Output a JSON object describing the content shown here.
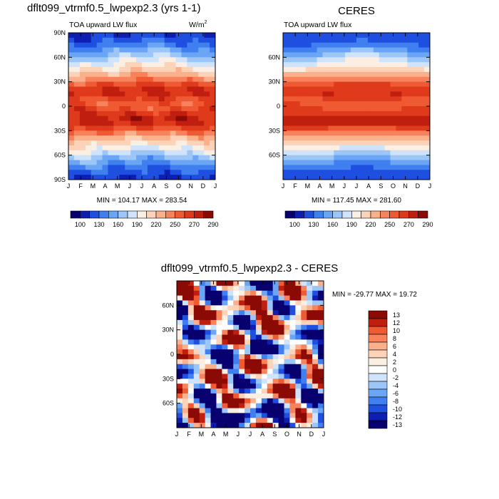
{
  "chart_data": [
    {
      "id": "model",
      "type": "heatmap",
      "title": "dflt099_vtrmf0.5_lwpexp2.3 (yrs 1-1)",
      "subtitle_left": "TOA upward LW flux",
      "units_base": "W/m",
      "units_exp": "2",
      "x_ticks": [
        "J",
        "F",
        "M",
        "A",
        "M",
        "J",
        "J",
        "A",
        "S",
        "O",
        "N",
        "D",
        "J"
      ],
      "y_ticks": [
        "90N",
        "60N",
        "30N",
        "0",
        "30S",
        "60S",
        "90S"
      ],
      "ylim": [
        -90,
        90
      ],
      "stats": "MIN = 104.17  MAX = 283.54",
      "colorbar_labels": [
        "100",
        "130",
        "160",
        "190",
        "220",
        "250",
        "270",
        "290"
      ]
    },
    {
      "id": "obs",
      "type": "heatmap",
      "title": "CERES",
      "subtitle_left": "TOA upward LW flux",
      "x_ticks": [
        "J",
        "F",
        "M",
        "A",
        "M",
        "J",
        "J",
        "A",
        "S",
        "O",
        "N",
        "D",
        "J"
      ],
      "y_ticks": [
        "60N",
        "30N",
        "0",
        "30S",
        "60S"
      ],
      "ylim": [
        -90,
        90
      ],
      "stats": "MIN = 117.45  MAX = 281.60",
      "colorbar_labels": [
        "100",
        "130",
        "160",
        "190",
        "220",
        "250",
        "270",
        "290"
      ]
    },
    {
      "id": "diff",
      "type": "heatmap",
      "title": "dflt099_vtrmf0.5_lwpexp2.3 - CERES",
      "x_ticks": [
        "J",
        "F",
        "M",
        "A",
        "M",
        "J",
        "J",
        "A",
        "S",
        "O",
        "N",
        "D",
        "J"
      ],
      "y_ticks": [
        "60N",
        "30N",
        "0",
        "30S",
        "60S"
      ],
      "ylim": [
        -90,
        90
      ],
      "stats": "MIN = -29.77  MAX =  19.72",
      "colorbar_labels": [
        "13",
        "12",
        "10",
        "8",
        "6",
        "4",
        "2",
        "0",
        "-2",
        "-4",
        "-6",
        "-8",
        "-10",
        "-12",
        "-13"
      ]
    }
  ],
  "palette": {
    "abs": [
      "#08006e",
      "#0d1eb0",
      "#1f4fe0",
      "#3f7ff0",
      "#6aa6f5",
      "#9cc6f8",
      "#cfe3fb",
      "#fbeee2",
      "#fcd2b8",
      "#fbb08c",
      "#f7825c",
      "#ef5a33",
      "#df3a1b",
      "#c01f0f",
      "#8c0a06"
    ],
    "diff": [
      "#08006e",
      "#0d1eb0",
      "#1f4fe0",
      "#3f7ff0",
      "#6aa6f5",
      "#9cc6f8",
      "#cfe3fb",
      "#ffffff",
      "#fbeee2",
      "#fcd2b8",
      "#fbb08c",
      "#f7825c",
      "#ef5a33",
      "#c01f0f",
      "#8c0a06"
    ]
  }
}
